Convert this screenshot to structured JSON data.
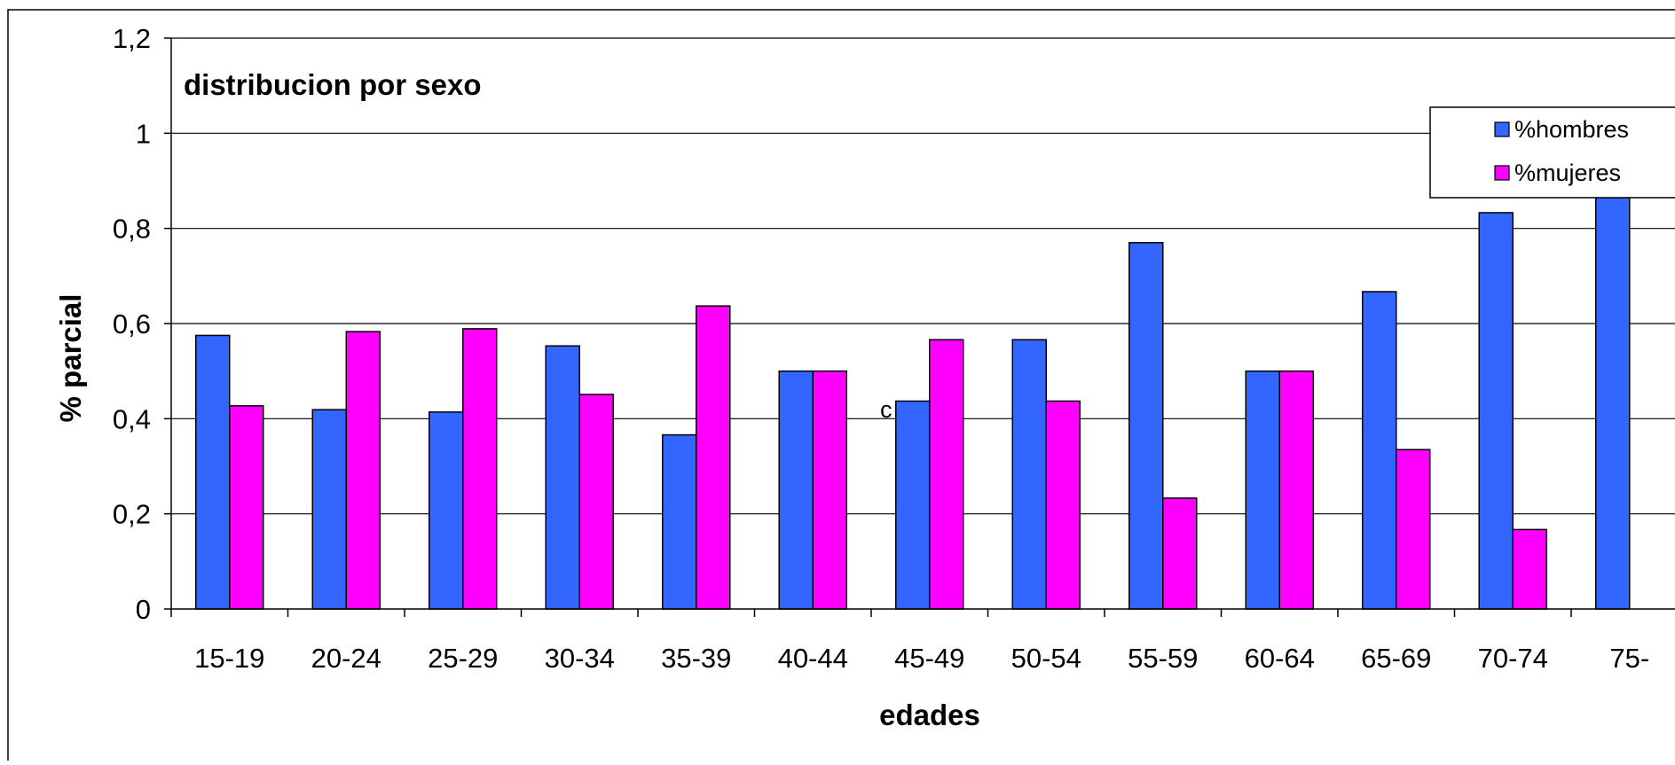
{
  "chart_data": {
    "type": "bar",
    "title": "distribucion por sexo",
    "xlabel": "edades",
    "ylabel": "% parcial",
    "categories": [
      "15-19",
      "20-24",
      "25-29",
      "30-34",
      "35-39",
      "40-44",
      "45-49",
      "50-54",
      "55-59",
      "60-64",
      "65-69",
      "70-74",
      "75-"
    ],
    "series": [
      {
        "name": "%hombres",
        "color": "#3366ff",
        "values": [
          0.575,
          0.419,
          0.414,
          0.553,
          0.366,
          0.5,
          0.437,
          0.566,
          0.77,
          0.5,
          0.667,
          0.833,
          0.9
        ]
      },
      {
        "name": "%mujeres",
        "color": "#ff00ff",
        "values": [
          0.427,
          0.583,
          0.589,
          0.451,
          0.637,
          0.5,
          0.566,
          0.437,
          0.233,
          0.5,
          0.335,
          0.167,
          null
        ]
      }
    ],
    "ylim": [
      0,
      1.2
    ],
    "yticks": [
      0,
      0.2,
      0.4,
      0.6,
      0.8,
      1,
      1.2
    ],
    "ytick_labels": [
      "0",
      "0,2",
      "0,4",
      "0,6",
      "0,8",
      "1",
      "1,2"
    ],
    "grid": true,
    "legend_position": "top-right",
    "annotation": "c"
  }
}
